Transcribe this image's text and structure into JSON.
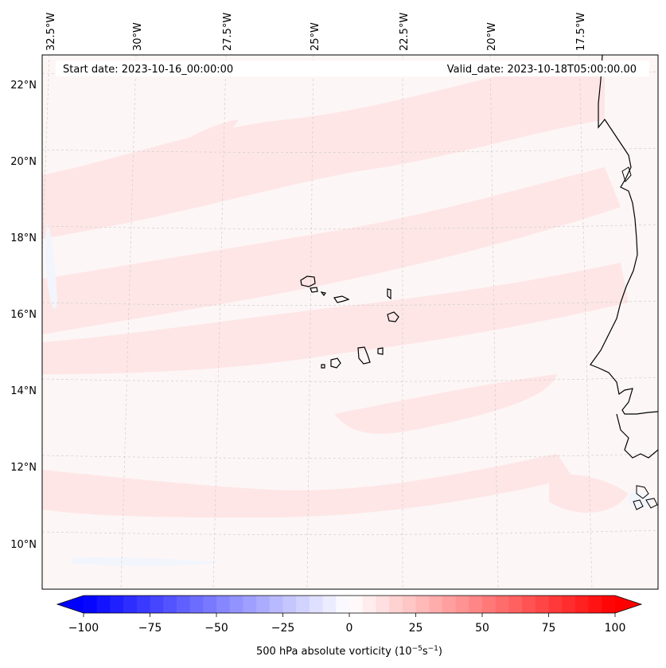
{
  "header": {
    "start_date": "Start date: 2023-10-16_00:00:00",
    "valid_date": "Valid_date: 2023-10-18T05:00:00.00"
  },
  "map": {
    "lon_labels": [
      "32.5°W",
      "30°W",
      "27.5°W",
      "25°W",
      "22.5°W",
      "20°W",
      "17.5°W"
    ],
    "lat_labels": [
      "22°N",
      "20°N",
      "18°N",
      "16°N",
      "14°N",
      "12°N",
      "10°N"
    ],
    "field_colors": {
      "background": "#fdf6f6",
      "light_pink": "#fee6e6",
      "pale_blue": "#f3f5fd"
    },
    "coastline_color": "#000000",
    "gridline_color": "#c8c8c8"
  },
  "colorbar": {
    "ticks": [
      "−100",
      "−75",
      "−50",
      "−25",
      "0",
      "25",
      "50",
      "75",
      "100"
    ],
    "label_main": "500 hPa absolute vorticity (10",
    "label_exp1": "−5",
    "label_mid": "s",
    "label_exp2": "−1",
    "label_end": ")",
    "min": -100,
    "max": 100,
    "levels": 40,
    "cmap": "bwr",
    "colors": {
      "negative": "#0000ff",
      "zero": "#ffffff",
      "positive": "#ff0000"
    }
  }
}
